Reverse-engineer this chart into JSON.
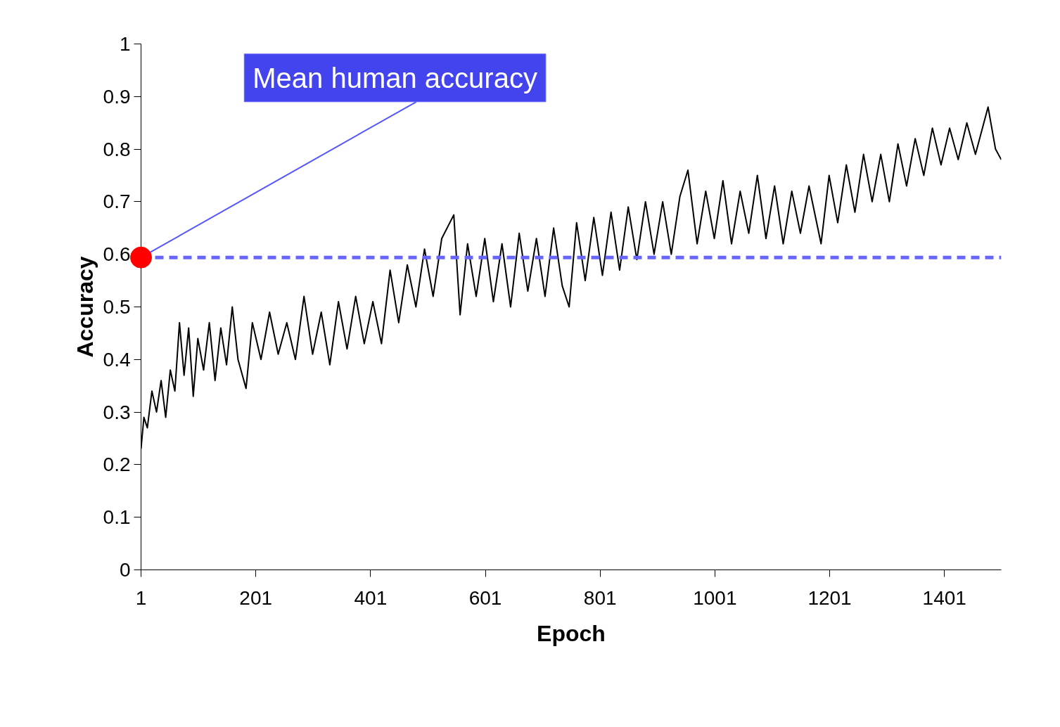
{
  "chart_data": {
    "type": "line",
    "xlabel": "Epoch",
    "ylabel": "Accuracy",
    "xlim": [
      1,
      1500
    ],
    "ylim": [
      0,
      1
    ],
    "xticks": [
      1,
      201,
      401,
      601,
      801,
      1001,
      1201,
      1401
    ],
    "yticks": [
      0,
      0.1,
      0.2,
      0.3,
      0.4,
      0.5,
      0.6,
      0.7,
      0.8,
      0.9,
      1
    ],
    "grid": false,
    "marker": "none",
    "line_style": "solid",
    "series": [
      {
        "color": "#000000",
        "x": [
          1,
          6,
          12,
          20,
          28,
          36,
          44,
          52,
          60,
          68,
          76,
          84,
          92,
          100,
          110,
          120,
          130,
          140,
          150,
          160,
          170,
          184,
          195,
          210,
          225,
          240,
          255,
          270,
          285,
          300,
          315,
          330,
          345,
          360,
          375,
          390,
          405,
          420,
          435,
          450,
          465,
          480,
          495,
          510,
          525,
          546,
          557,
          570,
          585,
          600,
          615,
          630,
          645,
          660,
          675,
          690,
          705,
          720,
          735,
          747,
          760,
          775,
          790,
          805,
          820,
          835,
          850,
          865,
          880,
          895,
          910,
          925,
          940,
          954,
          970,
          985,
          1000,
          1015,
          1030,
          1045,
          1060,
          1075,
          1090,
          1105,
          1120,
          1135,
          1150,
          1165,
          1186,
          1200,
          1215,
          1230,
          1245,
          1260,
          1275,
          1290,
          1305,
          1320,
          1335,
          1350,
          1365,
          1380,
          1395,
          1410,
          1425,
          1440,
          1455,
          1477,
          1490,
          1500
        ],
        "values": [
          0.23,
          0.29,
          0.27,
          0.34,
          0.3,
          0.36,
          0.29,
          0.38,
          0.34,
          0.47,
          0.37,
          0.46,
          0.33,
          0.44,
          0.38,
          0.47,
          0.36,
          0.46,
          0.39,
          0.5,
          0.4,
          0.345,
          0.47,
          0.4,
          0.49,
          0.41,
          0.47,
          0.4,
          0.52,
          0.41,
          0.49,
          0.39,
          0.51,
          0.42,
          0.52,
          0.43,
          0.51,
          0.43,
          0.57,
          0.47,
          0.58,
          0.5,
          0.61,
          0.52,
          0.63,
          0.675,
          0.485,
          0.62,
          0.52,
          0.63,
          0.51,
          0.62,
          0.5,
          0.64,
          0.53,
          0.63,
          0.52,
          0.65,
          0.54,
          0.5,
          0.66,
          0.55,
          0.67,
          0.56,
          0.68,
          0.57,
          0.69,
          0.59,
          0.7,
          0.6,
          0.7,
          0.6,
          0.71,
          0.76,
          0.62,
          0.72,
          0.63,
          0.74,
          0.62,
          0.72,
          0.64,
          0.75,
          0.63,
          0.73,
          0.62,
          0.72,
          0.64,
          0.73,
          0.62,
          0.75,
          0.66,
          0.77,
          0.68,
          0.79,
          0.7,
          0.79,
          0.7,
          0.81,
          0.73,
          0.82,
          0.75,
          0.84,
          0.77,
          0.84,
          0.78,
          0.85,
          0.79,
          0.88,
          0.8,
          0.78
        ]
      },
      {
        "type": "scatter",
        "marker": "circle",
        "color": "#ff0000",
        "x": [
          1
        ],
        "values": [
          0.594
        ]
      }
    ],
    "ref_lines": [
      {
        "axis": "y",
        "value": 0.594,
        "color": "#6666ff",
        "line_style": "dashed"
      }
    ],
    "annotations": [
      {
        "text": "Mean human accuracy",
        "x": 1,
        "y": 0.594
      }
    ]
  }
}
